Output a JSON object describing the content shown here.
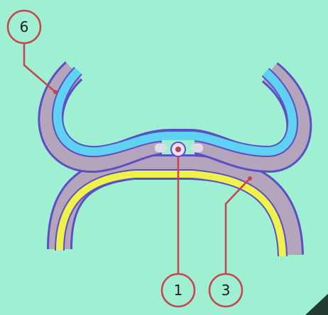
{
  "diagram": {
    "labels": [
      {
        "id": "label-6",
        "text": "6"
      },
      {
        "id": "label-1",
        "text": "1"
      },
      {
        "id": "label-3",
        "text": "3"
      }
    ],
    "colors": {
      "background": "#9fefd3",
      "outer_layer": "#5b4fc4",
      "middle_layer": "#b4a4bc",
      "inner_layer": "#5fd2f4",
      "yellow_layer": "#eef24a",
      "callout": "#c8434f"
    }
  }
}
